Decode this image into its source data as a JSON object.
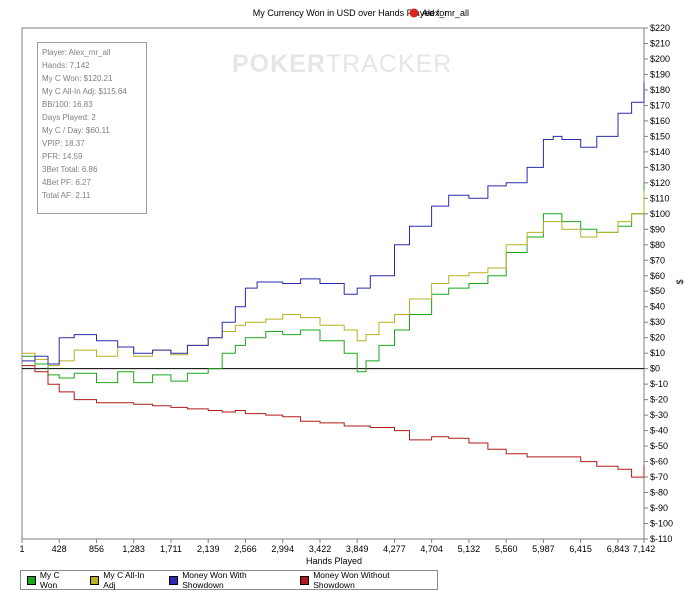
{
  "chart_title": "My Currency Won in USD over Hands Played for",
  "player_name": "Alex_mr_all",
  "colors": {
    "my_c_won": "#1aa81a",
    "all_in_adj": "#b8b020",
    "with_showdown": "#2a2ab0",
    "without_showdown": "#b01a1a",
    "zero_line": "#000000",
    "grid": "#d9d9d9"
  },
  "watermark": {
    "poker": "POKER",
    "tracker": "TRACKER",
    "icon": "spade-chip-icon"
  },
  "stats": [
    "Player: Alex_mr_all",
    "Hands: 7,142",
    "My C Won: $120.21",
    "My C All-In Adj: $115.64",
    "BB/100: 16.83",
    "Days Played: 2",
    "My C / Day: $60.11",
    "VPIP: 18.37",
    "PFR: 14.59",
    "3Bet Total: 6.86",
    "4Bet PF: 6.27",
    "Total AF: 2.11"
  ],
  "chart_data": {
    "type": "line",
    "title": "My Currency Won in USD over Hands Played for Alex_mr_all",
    "xlabel": "Hands Played",
    "ylabel": "$",
    "xlim": [
      1,
      7142
    ],
    "ylim": [
      -110,
      220
    ],
    "x_ticks": [
      1,
      428,
      856,
      1283,
      1711,
      2139,
      2566,
      2994,
      3422,
      3849,
      4277,
      4704,
      5132,
      5560,
      5987,
      6415,
      6843,
      7142
    ],
    "x_tick_labels": [
      "1",
      "428",
      "856",
      "1,283",
      "1,711",
      "2,139",
      "2,566",
      "2,994",
      "3,422",
      "3,849",
      "4,277",
      "4,704",
      "5,132",
      "5,560",
      "5,987",
      "6,415",
      "6,843",
      "7,142"
    ],
    "y_ticks": [
      220,
      210,
      200,
      190,
      180,
      170,
      160,
      150,
      140,
      130,
      120,
      110,
      100,
      90,
      80,
      70,
      60,
      50,
      40,
      30,
      20,
      10,
      0,
      -10,
      -20,
      -30,
      -40,
      -50,
      -60,
      -70,
      -80,
      -90,
      -100,
      -110
    ],
    "y_tick_labels": [
      "$220",
      "$210",
      "$200",
      "$190",
      "$180",
      "$170",
      "$160",
      "$150",
      "$140",
      "$130",
      "$120",
      "$110",
      "$100",
      "$90",
      "$80",
      "$70",
      "$60",
      "$50",
      "$40",
      "$30",
      "$20",
      "$10",
      "$0",
      "$-10",
      "$-20",
      "$-30",
      "$-40",
      "$-50",
      "$-60",
      "$-70",
      "$-80",
      "$-90",
      "$-100",
      "$-110"
    ],
    "legend_position": "bottom",
    "series": [
      {
        "name": "My C Won",
        "color": "#1aa81a",
        "x": [
          1,
          150,
          300,
          428,
          600,
          856,
          1100,
          1283,
          1500,
          1711,
          1900,
          2139,
          2300,
          2450,
          2566,
          2800,
          2994,
          3200,
          3422,
          3700,
          3849,
          3950,
          4100,
          4277,
          4450,
          4704,
          4900,
          5132,
          5350,
          5560,
          5800,
          5987,
          6200,
          6415,
          6600,
          6843,
          7000,
          7142
        ],
        "y": [
          8,
          3,
          -4,
          -6,
          -3,
          -9,
          -2,
          -9,
          -4,
          -8,
          -3,
          0,
          10,
          15,
          20,
          24,
          22,
          25,
          18,
          10,
          -2,
          5,
          15,
          25,
          35,
          48,
          52,
          55,
          60,
          75,
          85,
          100,
          95,
          90,
          88,
          92,
          100,
          120
        ]
      },
      {
        "name": "My C All-In Adj",
        "color": "#b8b020",
        "x": [
          1,
          150,
          300,
          428,
          600,
          856,
          1100,
          1283,
          1500,
          1711,
          1900,
          2139,
          2300,
          2450,
          2566,
          2800,
          2994,
          3200,
          3422,
          3700,
          3849,
          3950,
          4100,
          4277,
          4450,
          4704,
          4900,
          5132,
          5350,
          5560,
          5800,
          5987,
          6200,
          6415,
          6600,
          6843,
          7000,
          7142
        ],
        "y": [
          10,
          6,
          2,
          5,
          12,
          8,
          14,
          8,
          12,
          9,
          15,
          20,
          24,
          28,
          30,
          32,
          35,
          33,
          28,
          25,
          18,
          22,
          30,
          35,
          45,
          55,
          60,
          62,
          65,
          80,
          88,
          95,
          90,
          85,
          88,
          95,
          100,
          115
        ]
      },
      {
        "name": "Money Won With Showdown",
        "color": "#2a2ab0",
        "x": [
          1,
          150,
          300,
          428,
          600,
          856,
          1100,
          1283,
          1500,
          1711,
          1900,
          2139,
          2300,
          2450,
          2566,
          2700,
          2994,
          3200,
          3422,
          3700,
          3849,
          4000,
          4277,
          4450,
          4704,
          4900,
          5132,
          5350,
          5560,
          5800,
          5987,
          6100,
          6200,
          6415,
          6600,
          6843,
          7000,
          7142
        ],
        "y": [
          5,
          8,
          3,
          20,
          22,
          18,
          14,
          10,
          12,
          10,
          15,
          20,
          30,
          40,
          52,
          56,
          55,
          58,
          55,
          48,
          52,
          60,
          80,
          92,
          105,
          112,
          110,
          118,
          120,
          130,
          148,
          150,
          148,
          143,
          150,
          165,
          172,
          185
        ]
      },
      {
        "name": "Money Won Without Showdown",
        "color": "#b01a1a",
        "x": [
          1,
          150,
          300,
          428,
          600,
          856,
          1100,
          1283,
          1500,
          1711,
          1900,
          2139,
          2300,
          2450,
          2566,
          2800,
          2994,
          3200,
          3422,
          3700,
          3849,
          4000,
          4277,
          4450,
          4704,
          4900,
          5132,
          5350,
          5560,
          5800,
          5987,
          6200,
          6415,
          6600,
          6843,
          7000,
          7142
        ],
        "y": [
          2,
          -2,
          -10,
          -15,
          -20,
          -22,
          -22,
          -23,
          -24,
          -25,
          -26,
          -27,
          -28,
          -27,
          -29,
          -30,
          -31,
          -34,
          -35,
          -37,
          -37,
          -38,
          -40,
          -46,
          -44,
          -45,
          -48,
          -52,
          -55,
          -57,
          -57,
          -57,
          -60,
          -63,
          -65,
          -70,
          -62
        ]
      }
    ]
  },
  "legend": [
    {
      "label": "My C Won",
      "color": "#1aa81a"
    },
    {
      "label": "My C All-In Adj",
      "color": "#b8b020"
    },
    {
      "label": "Money Won With Showdown",
      "color": "#2a2ab0"
    },
    {
      "label": "Money Won Without Showdown",
      "color": "#b01a1a"
    }
  ]
}
